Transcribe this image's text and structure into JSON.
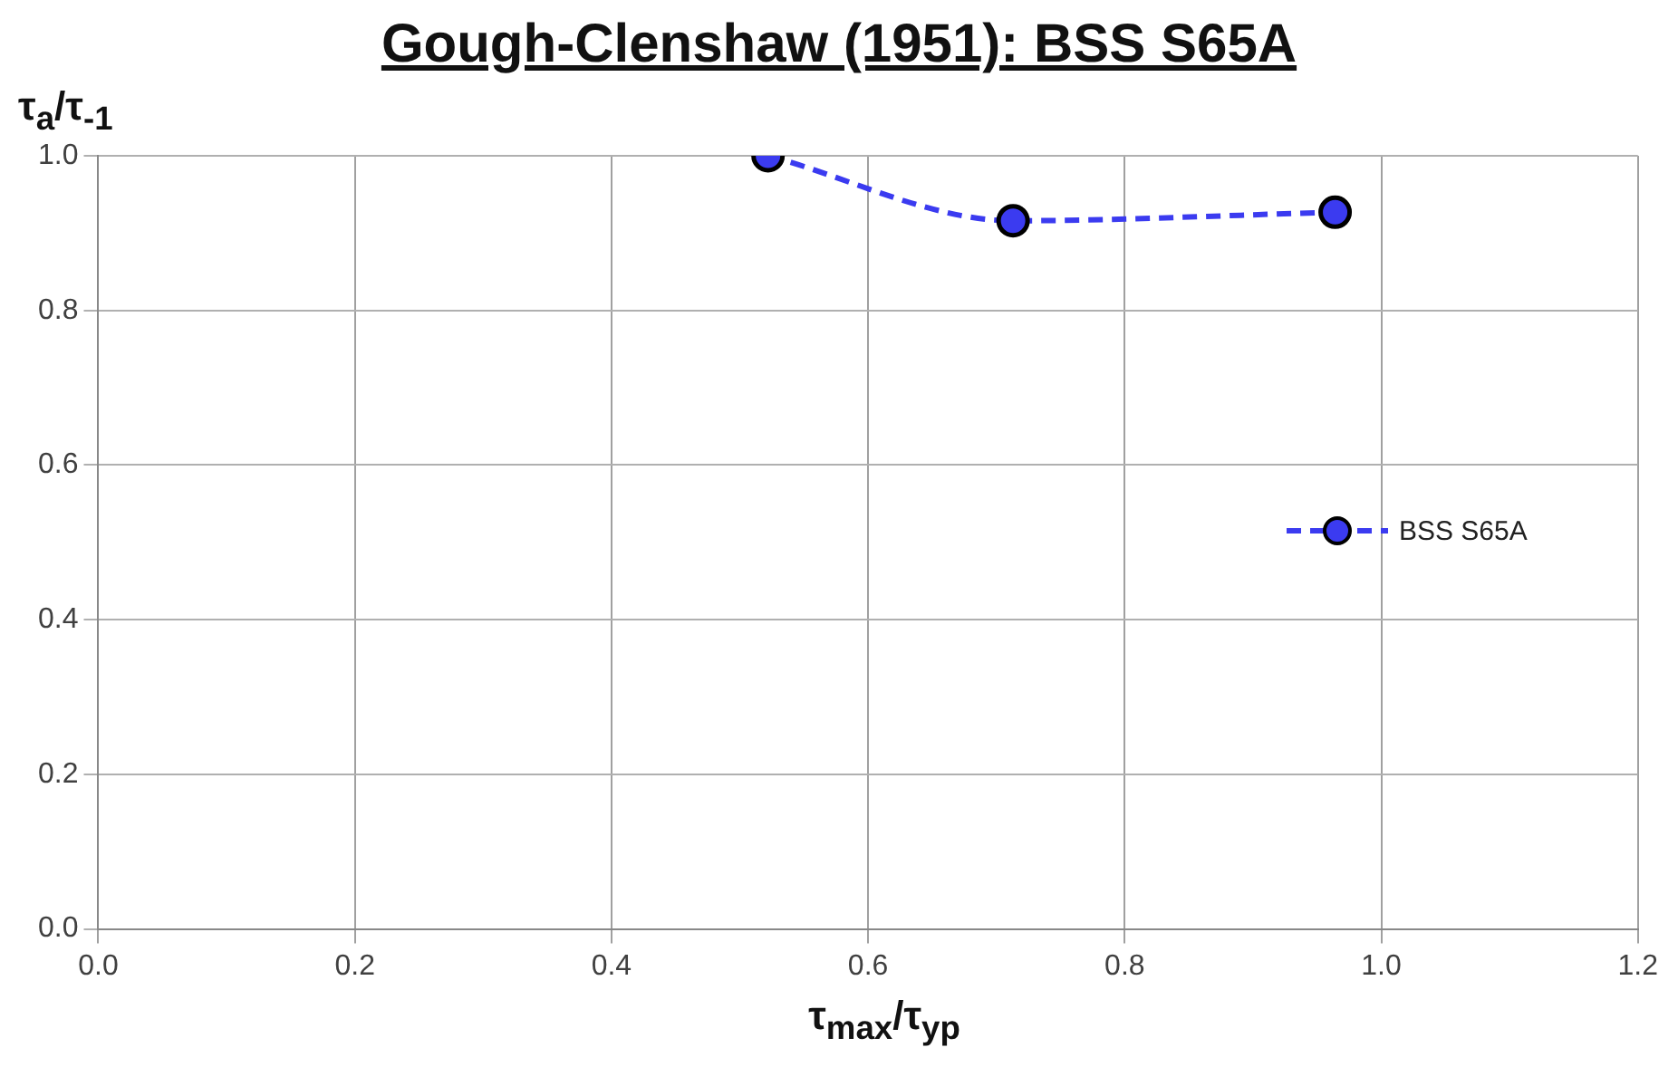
{
  "chart_data": {
    "type": "line",
    "title": "Gough-Clenshaw (1951): BSS S65A",
    "xlabel": "τ$_{max}$/τ$_{yp}$",
    "ylabel": "τ$_{a}$/τ$_{-1}$",
    "x": [
      0.522,
      0.713,
      0.964
    ],
    "series": [
      {
        "name": "BSS S65A",
        "color": "#3b3bf0",
        "values": [
          1.0,
          0.916,
          0.927
        ]
      }
    ],
    "xlim": [
      0,
      1.2
    ],
    "xticks": [
      {
        "value": 0,
        "label": "0.0"
      },
      {
        "value": 0.2,
        "label": "0.2"
      },
      {
        "value": 0.4,
        "label": "0.4"
      },
      {
        "value": 0.6,
        "label": "0.6"
      },
      {
        "value": 0.8,
        "label": "0.8"
      },
      {
        "value": 1.0,
        "label": "1.0"
      },
      {
        "value": 1.2,
        "label": "1.2"
      }
    ],
    "ylim": [
      0,
      1.0
    ],
    "yticks": [
      {
        "value": 0,
        "label": "0.0"
      },
      {
        "value": 0.2,
        "label": "0.2"
      },
      {
        "value": 0.4,
        "label": "0.4"
      },
      {
        "value": 0.6,
        "label": "0.6"
      },
      {
        "value": 0.8,
        "label": "0.8"
      },
      {
        "value": 1.0,
        "label": "1.0"
      }
    ],
    "grid": true,
    "legend": "right",
    "marker": "circle",
    "line_style": "dashed"
  }
}
